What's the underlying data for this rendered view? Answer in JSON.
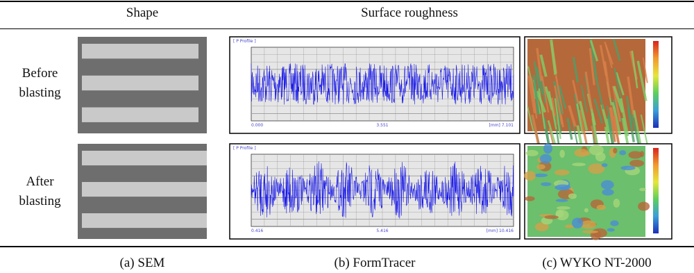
{
  "header": {
    "shape": "Shape",
    "roughness": "Surface roughness"
  },
  "rows": [
    {
      "label": "Before blasting",
      "profile": {
        "title": "[ P Profile ]",
        "x_labels": [
          "0.000",
          "3.551",
          "[mm] 7.101"
        ]
      }
    },
    {
      "label": "After blasting",
      "profile": {
        "title": "[ P Profile ]",
        "x_labels": [
          "0.416",
          "5.416",
          "[mm] 10.416"
        ]
      }
    }
  ],
  "captions": [
    "(a) SEM",
    "(b) FormTracer",
    "(c) WYKO NT-2000"
  ]
}
